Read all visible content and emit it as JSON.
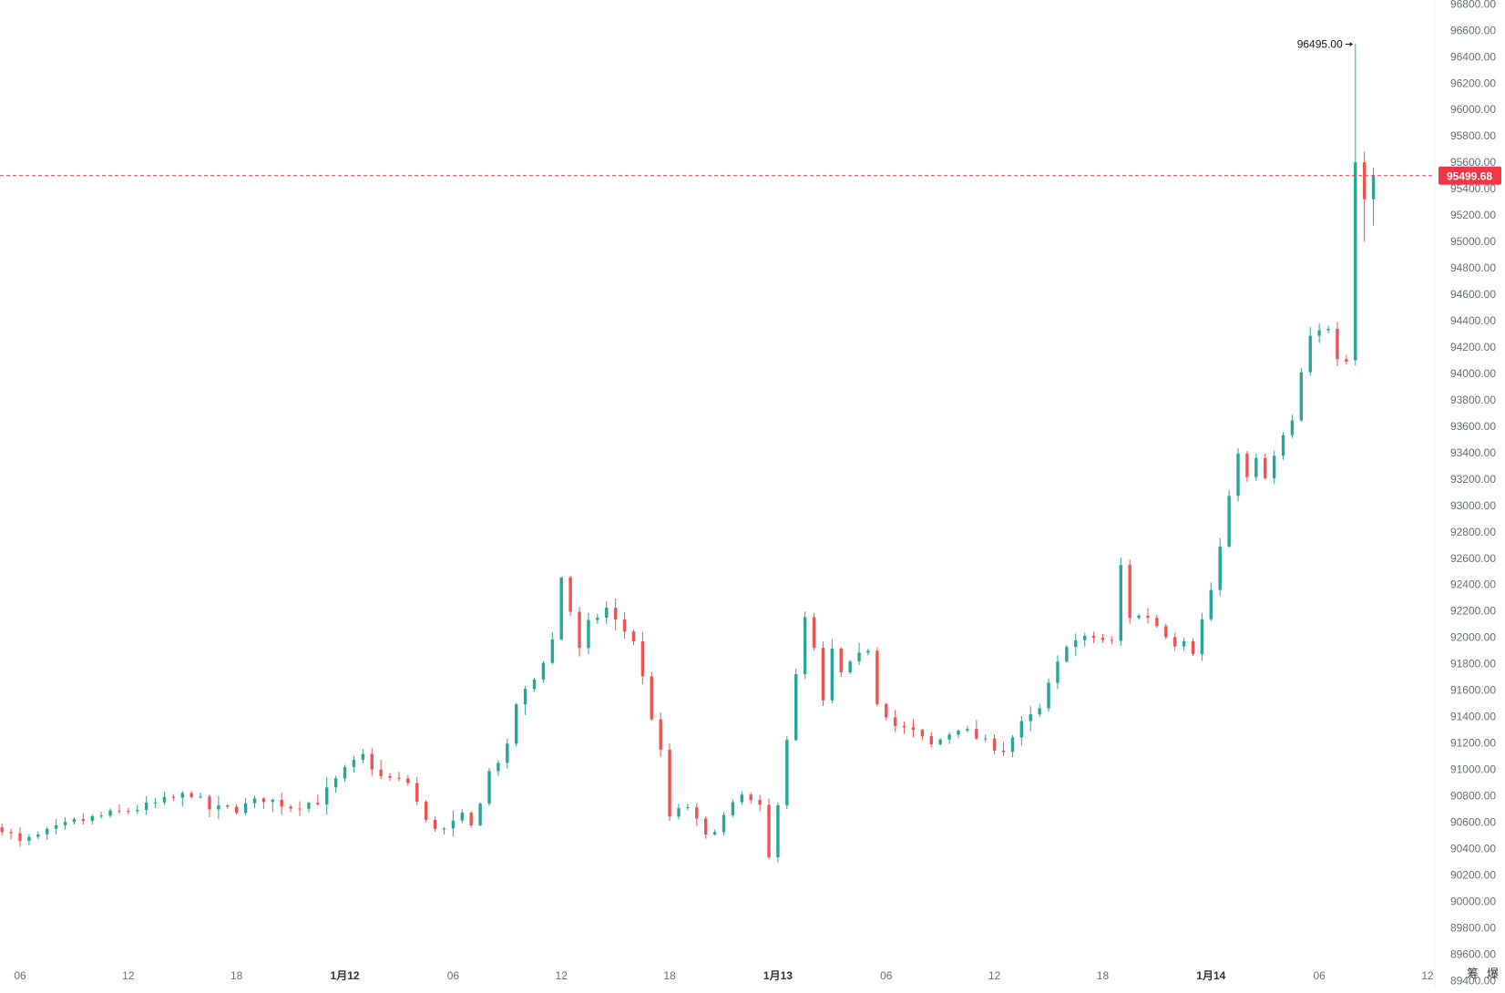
{
  "colors": {
    "up": "#26a69a",
    "down": "#ef5350",
    "price_line": "#f23645",
    "axis_text": "#6a6d78",
    "background": "#ffffff"
  },
  "corner_buttons": [
    "筹",
    "爆"
  ],
  "chart_data": {
    "type": "candlestick",
    "price_scale": "right",
    "y_tick_labels": [
      "96800.00",
      "96600.00",
      "96400.00",
      "96200.00",
      "96000.00",
      "95800.00",
      "95600.00",
      "95400.00",
      "95200.00",
      "95000.00",
      "94800.00",
      "94600.00",
      "94400.00",
      "94200.00",
      "94000.00",
      "93800.00",
      "93600.00",
      "93400.00",
      "93200.00",
      "93000.00",
      "92800.00",
      "92600.00",
      "92400.00",
      "92200.00",
      "92000.00",
      "91800.00",
      "91600.00",
      "91400.00",
      "91200.00",
      "91000.00",
      "90800.00",
      "90600.00",
      "90400.00",
      "90200.00",
      "90000.00",
      "89800.00",
      "89600.00",
      "89400.00"
    ],
    "ylim": [
      89340,
      96830
    ],
    "x_tick_labels": [
      "06",
      "12",
      "18",
      "1月12",
      "06",
      "12",
      "18",
      "1月13",
      "06",
      "12",
      "18",
      "1月14",
      "06",
      "12"
    ],
    "x_tick_hours": [
      6,
      12,
      18,
      24,
      30,
      36,
      42,
      48,
      54,
      60,
      66,
      72,
      78,
      84
    ],
    "bold_x_labels": [
      "1月12",
      "1月13",
      "1月14"
    ],
    "current_price": "95499.68",
    "high_marker": "96495.00",
    "candle_interval_minutes": 30,
    "first_candle_hour": 5.0,
    "keypoints": [
      [
        5.0,
        90560
      ],
      [
        6.0,
        90440
      ],
      [
        7.5,
        90520
      ],
      [
        9.0,
        90600
      ],
      [
        11.0,
        90660
      ],
      [
        13.0,
        90720
      ],
      [
        14.5,
        90780
      ],
      [
        15.5,
        90820
      ],
      [
        16.5,
        90700
      ],
      [
        18.0,
        90700
      ],
      [
        19.5,
        90780
      ],
      [
        21.0,
        90720
      ],
      [
        22.5,
        90760
      ],
      [
        24.0,
        90990
      ],
      [
        25.0,
        91100
      ],
      [
        26.0,
        90940
      ],
      [
        27.5,
        90900
      ],
      [
        28.5,
        90600
      ],
      [
        29.5,
        90540
      ],
      [
        30.5,
        90640
      ],
      [
        31.0,
        90560
      ],
      [
        32.0,
        90980
      ],
      [
        33.0,
        91160
      ],
      [
        33.5,
        91500
      ],
      [
        34.5,
        91680
      ],
      [
        35.5,
        91980
      ],
      [
        36.0,
        92460
      ],
      [
        36.5,
        92200
      ],
      [
        37.0,
        91900
      ],
      [
        37.5,
        92100
      ],
      [
        38.5,
        92220
      ],
      [
        39.0,
        92120
      ],
      [
        40.0,
        91980
      ],
      [
        41.0,
        91400
      ],
      [
        41.5,
        91120
      ],
      [
        42.0,
        90640
      ],
      [
        43.0,
        90720
      ],
      [
        44.0,
        90480
      ],
      [
        45.0,
        90640
      ],
      [
        46.0,
        90800
      ],
      [
        47.0,
        90700
      ],
      [
        47.5,
        90320
      ],
      [
        48.0,
        90760
      ],
      [
        48.5,
        91240
      ],
      [
        49.0,
        91700
      ],
      [
        49.5,
        92140
      ],
      [
        50.0,
        91900
      ],
      [
        50.5,
        91500
      ],
      [
        51.0,
        91900
      ],
      [
        51.5,
        91720
      ],
      [
        53.0,
        91920
      ],
      [
        53.5,
        91520
      ],
      [
        54.5,
        91330
      ],
      [
        55.5,
        91280
      ],
      [
        56.5,
        91180
      ],
      [
        58.0,
        91320
      ],
      [
        59.5,
        91200
      ],
      [
        60.5,
        91150
      ],
      [
        61.5,
        91340
      ],
      [
        62.5,
        91450
      ],
      [
        63.0,
        91630
      ],
      [
        64.0,
        91960
      ],
      [
        65.5,
        92000
      ],
      [
        66.5,
        91960
      ],
      [
        67.0,
        92540
      ],
      [
        67.5,
        92160
      ],
      [
        68.5,
        92160
      ],
      [
        70.0,
        91960
      ],
      [
        70.5,
        92000
      ],
      [
        71.0,
        91900
      ],
      [
        72.0,
        92360
      ],
      [
        72.5,
        92680
      ],
      [
        73.0,
        93040
      ],
      [
        73.5,
        93420
      ],
      [
        74.0,
        93200
      ],
      [
        74.5,
        93340
      ],
      [
        75.0,
        93200
      ],
      [
        76.0,
        93520
      ],
      [
        76.5,
        93620
      ],
      [
        77.0,
        94000
      ],
      [
        77.5,
        94260
      ],
      [
        78.5,
        94360
      ],
      [
        79.0,
        94140
      ],
      [
        79.5,
        94120
      ],
      [
        80.0,
        95600
      ],
      [
        80.5,
        95320
      ],
      [
        81.0,
        95499.68
      ]
    ]
  }
}
